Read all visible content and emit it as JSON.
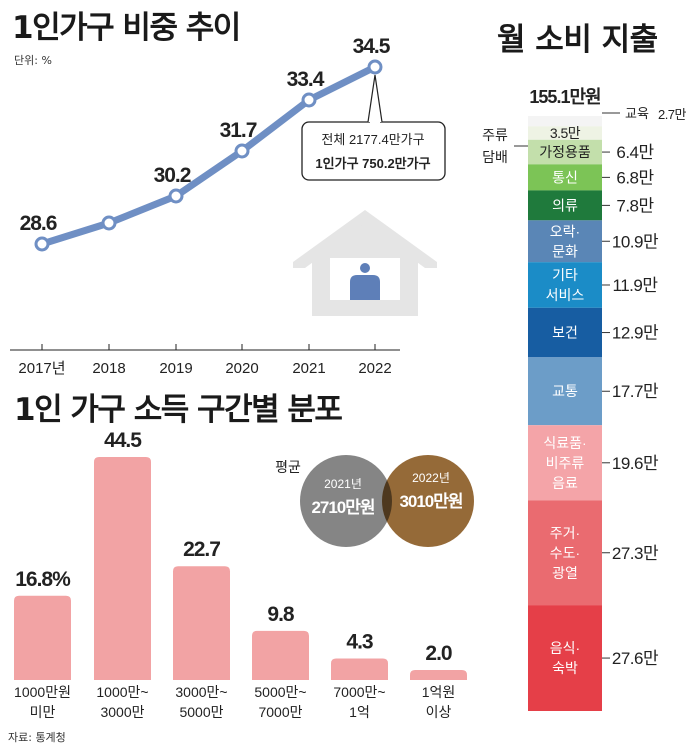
{
  "line_chart": {
    "title": "1인가구 비중 추이",
    "unit": "단위: %",
    "annotation": {
      "line1": "전체 2177.4만가구",
      "line2": "1인가구 750.2만가구"
    }
  },
  "income_chart": {
    "title": "1인 가구 소득 구간별 분포",
    "avg_label": "평균",
    "avg_2021": {
      "year": "2021년",
      "amount": "2710만원"
    },
    "avg_2022": {
      "year": "2022년",
      "amount": "3010만원"
    }
  },
  "spending_chart": {
    "title": "월 소비 지출",
    "total": "155.1만원"
  },
  "source": "자료: 통계청",
  "colors": {
    "line": "#6f8fc4",
    "bar": "#f2a3a4",
    "circle_2021": "#7b7b7b",
    "circle_2022": "#8a5a22",
    "house": "#e5e5e5",
    "person": "#5e7fb8"
  },
  "chart_data": [
    {
      "type": "line",
      "title": "1인가구 비중 추이",
      "ylabel": "%",
      "categories": [
        "2017년",
        "2018",
        "2019",
        "2020",
        "2021",
        "2022"
      ],
      "values": [
        28.6,
        29.3,
        30.2,
        31.7,
        33.4,
        34.5
      ],
      "labels": [
        "28.6",
        "",
        "30.2",
        "31.7",
        "33.4",
        "34.5"
      ],
      "ylim": [
        27.5,
        35.5
      ]
    },
    {
      "type": "bar",
      "title": "1인 가구 소득 구간별 분포",
      "categories": [
        "1000만원 미만",
        "1000만~ 3000만",
        "3000만~ 5000만",
        "5000만~ 7000만",
        "7000만~ 1억",
        "1억원 이상"
      ],
      "values": [
        16.8,
        44.5,
        22.7,
        9.8,
        4.3,
        2.0
      ],
      "labels": [
        "16.8%",
        "44.5",
        "22.7",
        "9.8",
        "4.3",
        "2.0"
      ],
      "ylim": [
        0,
        50
      ]
    },
    {
      "type": "bar",
      "stacked": true,
      "title": "월 소비 지출",
      "total": 155.1,
      "series": [
        {
          "name": "교육",
          "value": 2.7,
          "label": "2.7만",
          "color": "#f4f4f4"
        },
        {
          "name": "주류 담배",
          "value": 3.5,
          "label": "3.5만",
          "color": "#eef3e4"
        },
        {
          "name": "가정용품",
          "value": 6.4,
          "label": "6.4만",
          "color": "#c3dfab"
        },
        {
          "name": "통신",
          "value": 6.8,
          "label": "6.8만",
          "color": "#7cc456"
        },
        {
          "name": "의류",
          "value": 7.8,
          "label": "7.8만",
          "color": "#1f7a3c"
        },
        {
          "name": "오락·문화",
          "value": 10.9,
          "label": "10.9만",
          "color": "#5a86b6"
        },
        {
          "name": "기타 서비스",
          "value": 11.9,
          "label": "11.9만",
          "color": "#1b8cc7"
        },
        {
          "name": "보건",
          "value": 12.9,
          "label": "12.9만",
          "color": "#175da2"
        },
        {
          "name": "교통",
          "value": 17.7,
          "label": "17.7만",
          "color": "#6c9dc8"
        },
        {
          "name": "식료품·비주류 음료",
          "value": 19.6,
          "label": "19.6만",
          "color": "#f4a4a8"
        },
        {
          "name": "주거·수도·광열",
          "value": 27.3,
          "label": "27.3만",
          "color": "#ea6b70"
        },
        {
          "name": "음식·숙박",
          "value": 27.6,
          "label": "27.6만",
          "color": "#e53f48"
        }
      ],
      "inside_labels": [
        "",
        "",
        "가정용품",
        "통신",
        "의류",
        "오락·\n문화",
        "기타\n서비스",
        "보건",
        "교통",
        "식료품·\n비주류\n음료",
        "주거·\n수도·\n광열",
        "음식·\n숙박"
      ],
      "outside_labels": [
        "교육",
        "주류\n담배",
        "",
        "",
        "",
        "",
        "",
        "",
        "",
        "",
        "",
        ""
      ]
    }
  ]
}
